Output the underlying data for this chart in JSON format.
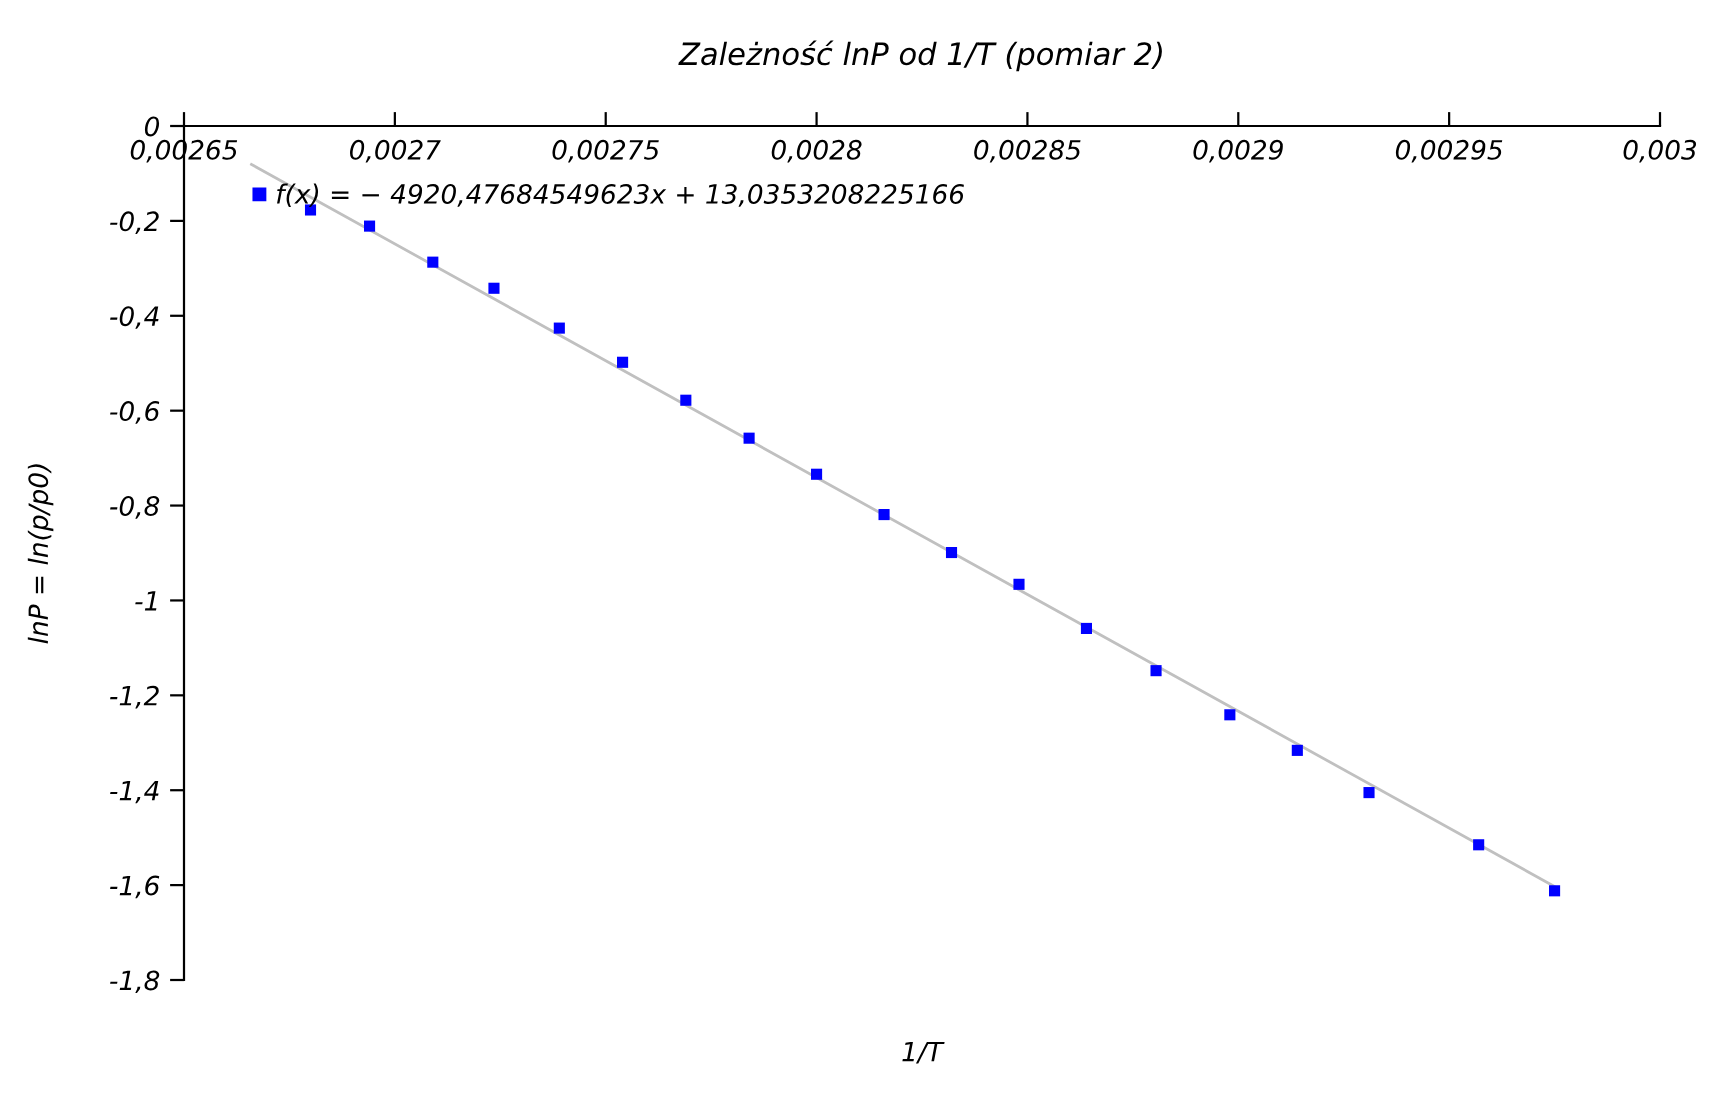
{
  "chart_data": {
    "type": "scatter",
    "title": "Zależność lnP od 1/T (pomiar 2)",
    "xlabel": "1/T",
    "ylabel": "lnP = ln(p/p0)",
    "series": [
      {
        "name": "f(x) = − 4920,47684549623x + 13,0353208225166",
        "color": "#0000ff",
        "marker": "square",
        "x": [
          0.00268,
          0.002694,
          0.002709,
          0.0027235,
          0.002739,
          0.002754,
          0.002769,
          0.002784,
          0.0028,
          0.002816,
          0.002832,
          0.002848,
          0.002864,
          0.0028805,
          0.002898,
          0.002914,
          0.002931,
          0.002957,
          0.002975
        ],
        "values": [
          -0.177,
          -0.211,
          -0.287,
          -0.342,
          -0.426,
          -0.498,
          -0.578,
          -0.658,
          -0.734,
          -0.819,
          -0.899,
          -0.966,
          -1.059,
          -1.148,
          -1.241,
          -1.316,
          -1.405,
          -1.515,
          -1.612
        ]
      },
      {
        "type": "line",
        "color": "#c0c0c0",
        "marker": "none",
        "line_style": "solid",
        "x": [
          0.002666,
          0.002975
        ],
        "values": [
          -0.081,
          -1.603
        ]
      }
    ],
    "xlim": [
      0.00265,
      0.003
    ],
    "xticks": [
      {
        "value": 0.00265,
        "label": "0,00265"
      },
      {
        "value": 0.0027,
        "label": "0,0027"
      },
      {
        "value": 0.00275,
        "label": "0,00275"
      },
      {
        "value": 0.0028,
        "label": "0,0028"
      },
      {
        "value": 0.00285,
        "label": "0,00285"
      },
      {
        "value": 0.0029,
        "label": "0,0029"
      },
      {
        "value": 0.00295,
        "label": "0,00295"
      },
      {
        "value": 0.003,
        "label": "0,003"
      }
    ],
    "ylim": [
      -1.8,
      0
    ],
    "yticks": [
      0,
      {
        "value": -0.2,
        "label": "-0,2"
      },
      {
        "value": -0.4,
        "label": "-0,4"
      },
      {
        "value": -0.6,
        "label": "-0,6"
      },
      {
        "value": -0.8,
        "label": "-0,8"
      },
      {
        "value": -1,
        "label": "-1"
      },
      {
        "value": -1.2,
        "label": "-1,2"
      },
      {
        "value": -1.4,
        "label": "-1,4"
      },
      {
        "value": -1.6,
        "label": "-1,6"
      },
      {
        "value": -1.8,
        "label": "-1,8"
      }
    ],
    "grid": false,
    "legend": "top left"
  }
}
